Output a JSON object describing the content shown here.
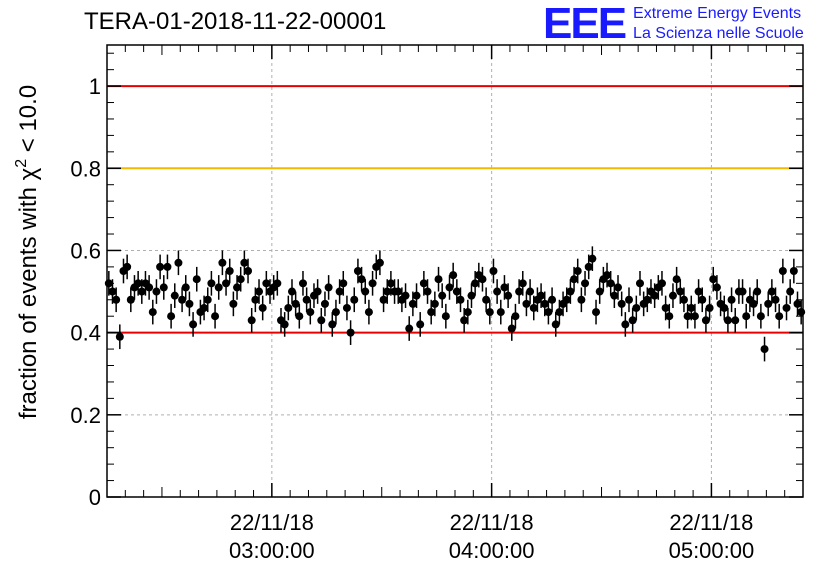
{
  "title": "TERA-01-2018-11-22-00001",
  "logo": {
    "mark": "EEE",
    "line1": "Extreme Energy Events",
    "line2": "La Scienza nelle Scuole"
  },
  "colors": {
    "points": "#000000",
    "red_line": "#e60000",
    "orange_line": "#f5b800",
    "grid": "#b0b0b0",
    "logo": "#1a1aff"
  },
  "chart_data": {
    "type": "scatter",
    "title": "TERA-01-2018-11-22-00001",
    "xlabel": "",
    "ylabel_prefix": "fraction of events with χ",
    "ylabel_sup": "2",
    "ylabel_suffix": " < 10.0",
    "xlim": [
      "02:15:00",
      "05:25:00"
    ],
    "ylim": [
      0,
      1.1
    ],
    "grid": true,
    "yticks": [
      0,
      0.2,
      0.4,
      0.6,
      0.8,
      1
    ],
    "ytick_labels": [
      "0",
      "0.2",
      "0.4",
      "0.6",
      "0.8",
      "1"
    ],
    "xticks": [
      {
        "date": "22/11/18",
        "time": "03:00:00"
      },
      {
        "date": "22/11/18",
        "time": "04:00:00"
      },
      {
        "date": "22/11/18",
        "time": "05:00:00"
      }
    ],
    "reference_lines": [
      {
        "y": 1.0,
        "color": "#e60000"
      },
      {
        "y": 0.8,
        "color": "#f5b800"
      },
      {
        "y": 0.4,
        "color": "#e60000"
      }
    ],
    "series": [
      {
        "error": 0.03,
        "points": [
          [
            "02:15:30",
            0.52
          ],
          [
            "02:16:30",
            0.5
          ],
          [
            "02:17:30",
            0.48
          ],
          [
            "02:18:30",
            0.39
          ],
          [
            "02:19:30",
            0.55
          ],
          [
            "02:20:30",
            0.56
          ],
          [
            "02:21:30",
            0.48
          ],
          [
            "02:22:30",
            0.51
          ],
          [
            "02:23:30",
            0.52
          ],
          [
            "02:24:30",
            0.5
          ],
          [
            "02:25:30",
            0.52
          ],
          [
            "02:26:30",
            0.51
          ],
          [
            "02:27:30",
            0.45
          ],
          [
            "02:28:30",
            0.5
          ],
          [
            "02:29:30",
            0.56
          ],
          [
            "02:30:30",
            0.51
          ],
          [
            "02:31:30",
            0.56
          ],
          [
            "02:32:30",
            0.44
          ],
          [
            "02:33:30",
            0.49
          ],
          [
            "02:34:30",
            0.57
          ],
          [
            "02:35:30",
            0.48
          ],
          [
            "02:36:30",
            0.51
          ],
          [
            "02:37:30",
            0.47
          ],
          [
            "02:38:30",
            0.42
          ],
          [
            "02:39:30",
            0.53
          ],
          [
            "02:40:30",
            0.45
          ],
          [
            "02:41:30",
            0.46
          ],
          [
            "02:42:30",
            0.48
          ],
          [
            "02:43:30",
            0.52
          ],
          [
            "02:44:30",
            0.44
          ],
          [
            "02:45:30",
            0.51
          ],
          [
            "02:46:30",
            0.57
          ],
          [
            "02:47:30",
            0.52
          ],
          [
            "02:48:30",
            0.55
          ],
          [
            "02:49:30",
            0.47
          ],
          [
            "02:50:30",
            0.51
          ],
          [
            "02:51:30",
            0.53
          ],
          [
            "02:52:30",
            0.57
          ],
          [
            "02:53:30",
            0.55
          ],
          [
            "02:54:30",
            0.43
          ],
          [
            "02:55:30",
            0.48
          ],
          [
            "02:56:30",
            0.5
          ],
          [
            "02:57:30",
            0.46
          ],
          [
            "02:58:30",
            0.52
          ],
          [
            "02:59:30",
            0.5
          ],
          [
            "03:00:30",
            0.51
          ],
          [
            "03:01:30",
            0.52
          ],
          [
            "03:02:30",
            0.43
          ],
          [
            "03:03:30",
            0.42
          ],
          [
            "03:04:30",
            0.46
          ],
          [
            "03:05:30",
            0.5
          ],
          [
            "03:06:30",
            0.47
          ],
          [
            "03:07:30",
            0.44
          ],
          [
            "03:08:30",
            0.52
          ],
          [
            "03:09:30",
            0.48
          ],
          [
            "03:10:30",
            0.45
          ],
          [
            "03:11:30",
            0.49
          ],
          [
            "03:12:30",
            0.5
          ],
          [
            "03:13:30",
            0.43
          ],
          [
            "03:14:30",
            0.47
          ],
          [
            "03:15:30",
            0.51
          ],
          [
            "03:16:30",
            0.42
          ],
          [
            "03:17:30",
            0.45
          ],
          [
            "03:18:30",
            0.5
          ],
          [
            "03:19:30",
            0.52
          ],
          [
            "03:20:30",
            0.46
          ],
          [
            "03:21:30",
            0.4
          ],
          [
            "03:22:30",
            0.48
          ],
          [
            "03:23:30",
            0.55
          ],
          [
            "03:24:30",
            0.53
          ],
          [
            "03:25:30",
            0.5
          ],
          [
            "03:26:30",
            0.45
          ],
          [
            "03:27:30",
            0.52
          ],
          [
            "03:28:30",
            0.56
          ],
          [
            "03:29:30",
            0.57
          ],
          [
            "03:30:30",
            0.48
          ],
          [
            "03:31:30",
            0.5
          ],
          [
            "03:32:30",
            0.52
          ],
          [
            "03:33:30",
            0.5
          ],
          [
            "03:34:30",
            0.5
          ],
          [
            "03:35:30",
            0.48
          ],
          [
            "03:36:30",
            0.49
          ],
          [
            "03:37:30",
            0.41
          ],
          [
            "03:38:30",
            0.47
          ],
          [
            "03:39:30",
            0.49
          ],
          [
            "03:40:30",
            0.42
          ],
          [
            "03:41:30",
            0.52
          ],
          [
            "03:42:30",
            0.5
          ],
          [
            "03:43:30",
            0.45
          ],
          [
            "03:44:30",
            0.47
          ],
          [
            "03:45:30",
            0.53
          ],
          [
            "03:46:30",
            0.49
          ],
          [
            "03:47:30",
            0.44
          ],
          [
            "03:48:30",
            0.51
          ],
          [
            "03:49:30",
            0.54
          ],
          [
            "03:50:30",
            0.5
          ],
          [
            "03:51:30",
            0.48
          ],
          [
            "03:52:30",
            0.43
          ],
          [
            "03:53:30",
            0.45
          ],
          [
            "03:54:30",
            0.49
          ],
          [
            "03:55:30",
            0.52
          ],
          [
            "03:56:30",
            0.54
          ],
          [
            "03:57:30",
            0.53
          ],
          [
            "03:58:30",
            0.48
          ],
          [
            "03:59:30",
            0.45
          ],
          [
            "04:00:30",
            0.55
          ],
          [
            "04:01:30",
            0.5
          ],
          [
            "04:02:30",
            0.45
          ],
          [
            "04:03:30",
            0.51
          ],
          [
            "04:04:30",
            0.49
          ],
          [
            "04:05:30",
            0.41
          ],
          [
            "04:06:30",
            0.44
          ],
          [
            "04:07:30",
            0.5
          ],
          [
            "04:08:30",
            0.52
          ],
          [
            "04:09:30",
            0.47
          ],
          [
            "04:10:30",
            0.5
          ],
          [
            "04:11:30",
            0.46
          ],
          [
            "04:12:30",
            0.48
          ],
          [
            "04:13:30",
            0.49
          ],
          [
            "04:14:30",
            0.47
          ],
          [
            "04:15:30",
            0.45
          ],
          [
            "04:16:30",
            0.48
          ],
          [
            "04:17:30",
            0.42
          ],
          [
            "04:18:30",
            0.45
          ],
          [
            "04:19:30",
            0.47
          ],
          [
            "04:20:30",
            0.48
          ],
          [
            "04:21:30",
            0.5
          ],
          [
            "04:22:30",
            0.53
          ],
          [
            "04:23:30",
            0.55
          ],
          [
            "04:24:30",
            0.48
          ],
          [
            "04:25:30",
            0.52
          ],
          [
            "04:26:30",
            0.56
          ],
          [
            "04:27:30",
            0.58
          ],
          [
            "04:28:30",
            0.45
          ],
          [
            "04:29:30",
            0.5
          ],
          [
            "04:30:30",
            0.53
          ],
          [
            "04:31:30",
            0.54
          ],
          [
            "04:32:30",
            0.52
          ],
          [
            "04:33:30",
            0.49
          ],
          [
            "04:34:30",
            0.51
          ],
          [
            "04:35:30",
            0.47
          ],
          [
            "04:36:30",
            0.42
          ],
          [
            "04:37:30",
            0.48
          ],
          [
            "04:38:30",
            0.43
          ],
          [
            "04:39:30",
            0.46
          ],
          [
            "04:40:30",
            0.52
          ],
          [
            "04:41:30",
            0.47
          ],
          [
            "04:42:30",
            0.48
          ],
          [
            "04:43:30",
            0.5
          ],
          [
            "04:44:30",
            0.49
          ],
          [
            "04:45:30",
            0.51
          ],
          [
            "04:46:30",
            0.52
          ],
          [
            "04:47:30",
            0.46
          ],
          [
            "04:48:30",
            0.44
          ],
          [
            "04:49:30",
            0.49
          ],
          [
            "04:50:30",
            0.53
          ],
          [
            "04:51:30",
            0.5
          ],
          [
            "04:52:30",
            0.48
          ],
          [
            "04:53:30",
            0.44
          ],
          [
            "04:54:30",
            0.46
          ],
          [
            "04:55:30",
            0.44
          ],
          [
            "04:56:30",
            0.5
          ],
          [
            "04:57:30",
            0.48
          ],
          [
            "04:58:30",
            0.43
          ],
          [
            "04:59:30",
            0.46
          ],
          [
            "05:00:30",
            0.53
          ],
          [
            "05:01:30",
            0.51
          ],
          [
            "05:02:30",
            0.47
          ],
          [
            "05:03:30",
            0.46
          ],
          [
            "05:04:30",
            0.43
          ],
          [
            "05:05:30",
            0.48
          ],
          [
            "05:06:30",
            0.43
          ],
          [
            "05:07:30",
            0.5
          ],
          [
            "05:08:30",
            0.5
          ],
          [
            "05:09:30",
            0.44
          ],
          [
            "05:10:30",
            0.48
          ],
          [
            "05:11:30",
            0.47
          ],
          [
            "05:12:30",
            0.5
          ],
          [
            "05:13:30",
            0.44
          ],
          [
            "05:14:30",
            0.36
          ],
          [
            "05:15:30",
            0.47
          ],
          [
            "05:16:30",
            0.5
          ],
          [
            "05:17:30",
            0.48
          ],
          [
            "05:18:30",
            0.44
          ],
          [
            "05:19:30",
            0.55
          ],
          [
            "05:20:30",
            0.46
          ],
          [
            "05:21:30",
            0.5
          ],
          [
            "05:22:30",
            0.55
          ],
          [
            "05:23:30",
            0.47
          ],
          [
            "05:24:30",
            0.45
          ]
        ]
      }
    ]
  }
}
